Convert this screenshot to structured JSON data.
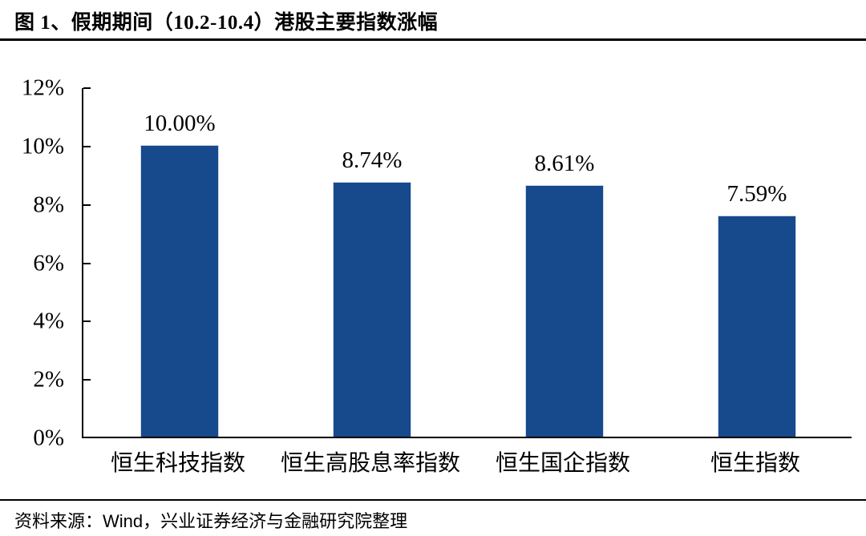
{
  "figure": {
    "title": "图 1、假期期间（10.2-10.4）港股主要指数涨幅"
  },
  "footer": {
    "prefix": "资料来源：",
    "provider": "Wind",
    "suffix": "，兴业证券经济与金融研究院整理"
  },
  "colors": {
    "bar": "#17498D",
    "axis": "#000000",
    "background": "#FFFFFF",
    "text": "#000000"
  },
  "chart_data": {
    "type": "bar",
    "title": "图 1、假期期间（10.2-10.4）港股主要指数涨幅",
    "categories": [
      "恒生科技指数",
      "恒生高股息率指数",
      "恒生国企指数",
      "恒生指数"
    ],
    "values": [
      10.0,
      8.74,
      8.61,
      7.59
    ],
    "data_labels": [
      "10.00%",
      "8.74%",
      "8.61%",
      "7.59%"
    ],
    "xlabel": "",
    "ylabel": "",
    "ylim": [
      0,
      12
    ],
    "ytick_step": 2,
    "ytick_labels": [
      "0%",
      "2%",
      "4%",
      "6%",
      "8%",
      "10%",
      "12%"
    ],
    "grid": false,
    "legend": null
  }
}
